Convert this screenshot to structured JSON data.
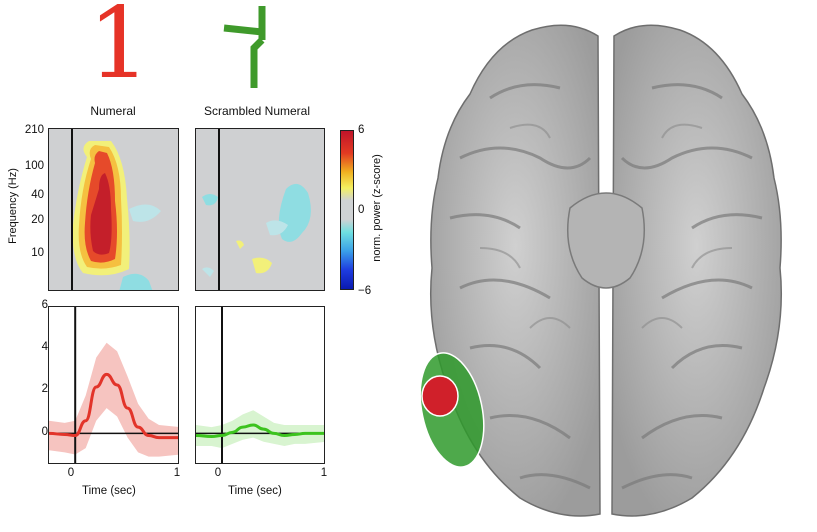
{
  "figure": {
    "stimuli": {
      "numeral": {
        "glyph": "1",
        "color": "#e63327"
      },
      "scrambled": {
        "color": "#3f9a2b"
      }
    },
    "panels": {
      "numeral_title": "Numeral",
      "scrambled_title": "Scrambled Numeral"
    },
    "spectrogram": {
      "ylabel": "Frequency (Hz)",
      "yticks": [
        "210",
        "100",
        "40",
        "20",
        "10"
      ]
    },
    "colorbar": {
      "label": "norm. power (z-score)",
      "ticks": [
        "6",
        "0",
        "−6"
      ]
    },
    "timecourse": {
      "yticks": [
        "6",
        "4",
        "2",
        "0"
      ],
      "xticks": [
        "0",
        "1"
      ],
      "xlabel": "Time (sec)"
    },
    "colors": {
      "numeral_line": "#e2342a",
      "numeral_band": "#f6c4c0",
      "scrambled_line": "#3cc31e",
      "scrambled_band": "#d8f4d0",
      "roi_outer": "#2f9a2c",
      "roi_inner": "#d0202a",
      "brain_fill": "#b9b9b9"
    }
  },
  "chart_data": [
    {
      "type": "line",
      "title": "Numeral",
      "xlabel": "Time (sec)",
      "ylabel": "",
      "xlim": [
        -0.25,
        1.0
      ],
      "ylim": [
        -1.5,
        6
      ],
      "x": [
        -0.25,
        -0.1,
        0,
        0.1,
        0.2,
        0.3,
        0.4,
        0.5,
        0.6,
        0.7,
        0.8,
        1.0
      ],
      "series": [
        {
          "values": [
            0.0,
            -0.05,
            -0.1,
            0.6,
            2.2,
            2.8,
            2.3,
            1.2,
            0.3,
            -0.1,
            -0.2,
            -0.2
          ],
          "upper": [
            0.6,
            0.5,
            0.6,
            1.8,
            3.6,
            4.3,
            3.9,
            2.7,
            1.4,
            0.7,
            0.4,
            0.3
          ],
          "lower": [
            -0.8,
            -0.9,
            -1.0,
            -0.7,
            0.6,
            1.2,
            0.8,
            -0.2,
            -0.9,
            -1.1,
            -1.1,
            -1.0
          ]
        }
      ]
    },
    {
      "type": "line",
      "title": "Scrambled Numeral",
      "xlabel": "Time (sec)",
      "ylabel": "",
      "xlim": [
        -0.25,
        1.0
      ],
      "ylim": [
        -1.5,
        6
      ],
      "x": [
        -0.25,
        -0.1,
        0,
        0.1,
        0.2,
        0.3,
        0.4,
        0.5,
        0.6,
        0.7,
        0.8,
        1.0
      ],
      "series": [
        {
          "values": [
            -0.1,
            -0.15,
            -0.1,
            0.05,
            0.3,
            0.4,
            0.2,
            0.0,
            -0.1,
            -0.05,
            0.0,
            0.0
          ],
          "upper": [
            0.4,
            0.3,
            0.4,
            0.6,
            0.9,
            1.1,
            0.8,
            0.5,
            0.4,
            0.4,
            0.4,
            0.4
          ],
          "lower": [
            -0.6,
            -0.6,
            -0.7,
            -0.5,
            -0.3,
            -0.2,
            -0.4,
            -0.5,
            -0.6,
            -0.5,
            -0.5,
            -0.4
          ]
        }
      ]
    },
    {
      "type": "heatmap",
      "title": "Numeral",
      "ylabel": "Frequency (Hz)",
      "yticks": [
        "210",
        "100",
        "40",
        "20",
        "10"
      ],
      "colorbar": {
        "label": "norm. power (z-score)",
        "range": [
          -6,
          6
        ]
      },
      "description_values": {
        "peak_z": 6,
        "time_range": [
          0,
          0.6
        ],
        "freq_range": [
          10,
          150
        ]
      }
    },
    {
      "type": "heatmap",
      "title": "Scrambled Numeral",
      "colorbar": {
        "label": "norm. power (z-score)",
        "range": [
          -6,
          6
        ]
      },
      "description_values": {
        "peak_z": 2
      }
    }
  ]
}
